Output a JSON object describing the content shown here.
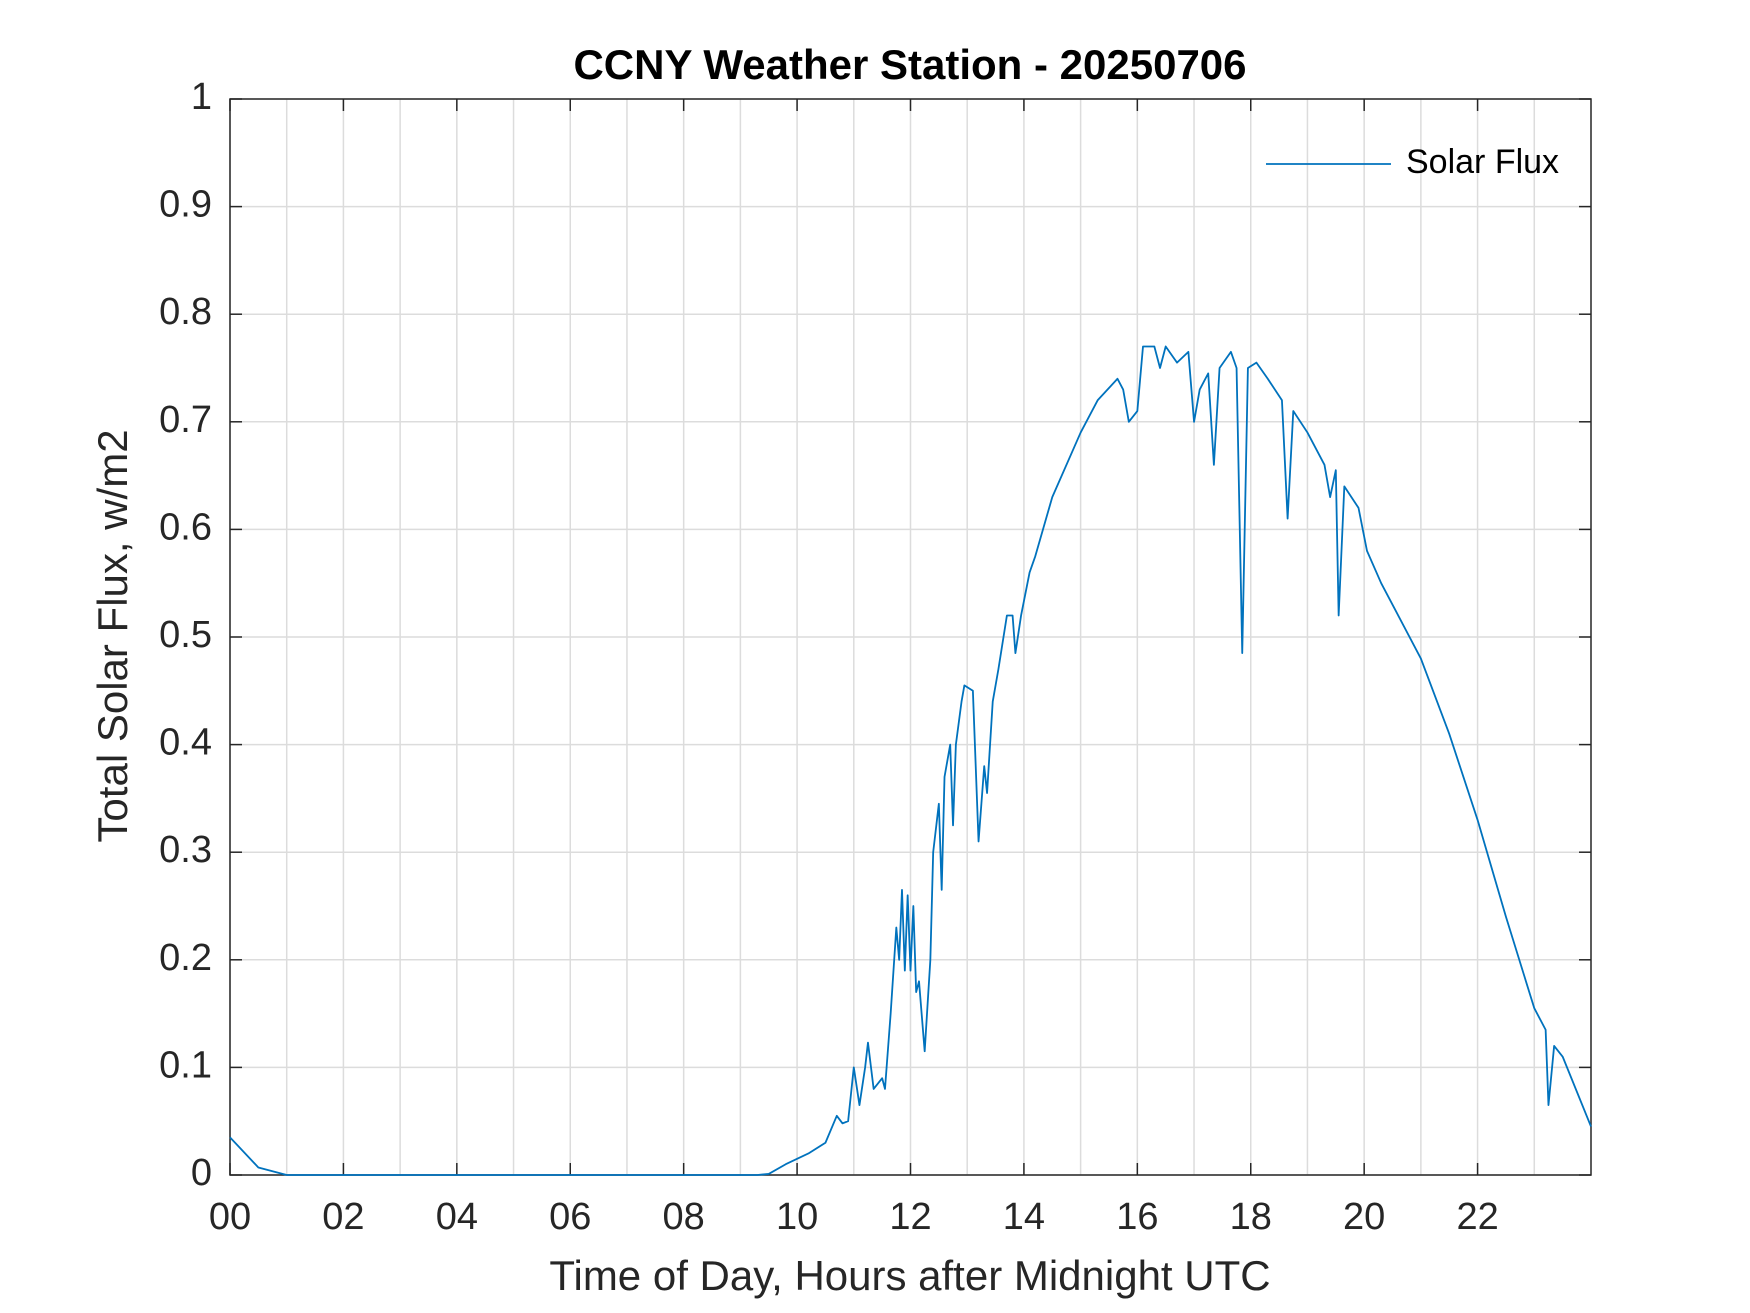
{
  "chart_data": {
    "type": "line",
    "title": "CCNY Weather Station - 20250706",
    "xlabel": "Time of Day, Hours after Midnight UTC",
    "ylabel": "Total Solar Flux, w/m2",
    "xlim": [
      0,
      24
    ],
    "ylim": [
      0,
      1
    ],
    "xticks": [
      {
        "value": 0,
        "label": "00"
      },
      {
        "value": 2,
        "label": "02"
      },
      {
        "value": 4,
        "label": "04"
      },
      {
        "value": 6,
        "label": "06"
      },
      {
        "value": 8,
        "label": "08"
      },
      10,
      12,
      14,
      16,
      18,
      20,
      22
    ],
    "xminorticks": [
      1,
      3,
      5,
      7,
      9,
      11,
      13,
      15,
      17,
      19,
      21,
      23
    ],
    "yticks": [
      0,
      0.1,
      0.2,
      0.3,
      0.4,
      0.5,
      0.6,
      0.7,
      0.8,
      0.9,
      1
    ],
    "grid": true,
    "legend": "upper right",
    "series": [
      {
        "name": "Solar Flux",
        "color": "#0072BD",
        "x": [
          0,
          0.5,
          1.0,
          9.3,
          9.5,
          9.8,
          10.2,
          10.5,
          10.7,
          10.8,
          10.9,
          11.0,
          11.1,
          11.2,
          11.25,
          11.35,
          11.5,
          11.55,
          11.65,
          11.75,
          11.8,
          11.85,
          11.9,
          11.95,
          12.0,
          12.05,
          12.1,
          12.15,
          12.25,
          12.35,
          12.4,
          12.5,
          12.55,
          12.6,
          12.7,
          12.75,
          12.8,
          12.9,
          12.95,
          13.1,
          13.2,
          13.3,
          13.35,
          13.45,
          13.55,
          13.7,
          13.8,
          13.85,
          13.95,
          14.1,
          14.2,
          14.5,
          15.0,
          15.3,
          15.65,
          15.75,
          15.85,
          16.0,
          16.1,
          16.3,
          16.4,
          16.5,
          16.7,
          16.9,
          17.0,
          17.1,
          17.25,
          17.35,
          17.45,
          17.65,
          17.75,
          17.85,
          17.95,
          18.1,
          18.3,
          18.55,
          18.65,
          18.75,
          19.0,
          19.3,
          19.4,
          19.5,
          19.55,
          19.65,
          19.9,
          20.05,
          20.3,
          21.0,
          21.5,
          22.0,
          22.5,
          23.0,
          23.2,
          23.25,
          23.35,
          23.5,
          24.0
        ],
        "values": [
          0.035,
          0.007,
          0.0,
          0.0,
          0.001,
          0.01,
          0.02,
          0.03,
          0.055,
          0.048,
          0.05,
          0.1,
          0.065,
          0.1,
          0.123,
          0.08,
          0.09,
          0.08,
          0.15,
          0.23,
          0.2,
          0.265,
          0.19,
          0.26,
          0.19,
          0.25,
          0.17,
          0.18,
          0.115,
          0.2,
          0.3,
          0.345,
          0.265,
          0.37,
          0.4,
          0.325,
          0.4,
          0.44,
          0.455,
          0.45,
          0.31,
          0.38,
          0.355,
          0.44,
          0.47,
          0.52,
          0.52,
          0.485,
          0.52,
          0.56,
          0.575,
          0.63,
          0.69,
          0.72,
          0.74,
          0.73,
          0.7,
          0.71,
          0.77,
          0.77,
          0.75,
          0.77,
          0.755,
          0.765,
          0.7,
          0.73,
          0.745,
          0.66,
          0.75,
          0.765,
          0.75,
          0.485,
          0.75,
          0.755,
          0.74,
          0.72,
          0.61,
          0.71,
          0.69,
          0.66,
          0.63,
          0.655,
          0.52,
          0.64,
          0.62,
          0.58,
          0.55,
          0.48,
          0.41,
          0.33,
          0.24,
          0.155,
          0.135,
          0.065,
          0.12,
          0.11,
          0.045
        ]
      }
    ]
  }
}
